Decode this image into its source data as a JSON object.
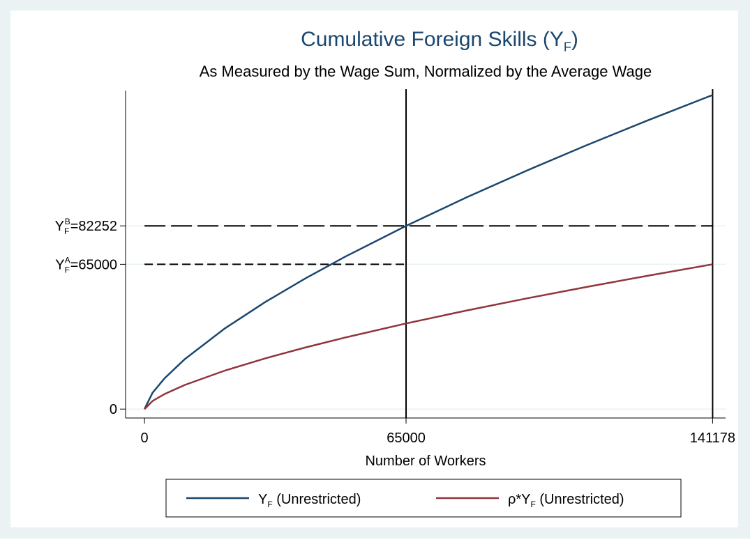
{
  "chart_data": {
    "type": "line",
    "title": [
      "Cumulative Foreign Skills (Y",
      "F",
      ")"
    ],
    "subtitle": "As Measured by the Wage Sum, Normalized by the Average Wage",
    "xlabel": "Number of Workers",
    "x": [
      0,
      2000,
      5000,
      10000,
      20000,
      30000,
      40000,
      50000,
      65000,
      80000,
      95000,
      110000,
      125000,
      141178
    ],
    "series": [
      {
        "name": [
          "Y",
          "F",
          " (Unrestricted)"
        ],
        "color": "#1a476f",
        "values": [
          0,
          7322,
          13833,
          22398,
          36257,
          48060,
          58695,
          68540,
          82252,
          95018,
          107076,
          118558,
          129580,
          141012
        ]
      },
      {
        "name": [
          "ρ*Y",
          "F",
          " (Unrestricted)"
        ],
        "color": "#90353b",
        "values": [
          0,
          3640,
          6773,
          10825,
          17306,
          22776,
          27673,
          32186,
          38440,
          44241,
          49699,
          54888,
          59847,
          65000
        ]
      }
    ],
    "xlim": [
      -4700,
      144400
    ],
    "xticks": [
      0,
      65000,
      141178
    ],
    "ylim": [
      -4000,
      143000
    ],
    "yticks": [
      0,
      {
        "value": 65000,
        "label": [
          "Y",
          "F",
          "A",
          "=65000"
        ]
      },
      {
        "value": 82252,
        "label": [
          "Y",
          "F",
          "B",
          "=82252"
        ]
      }
    ],
    "grid": true,
    "legend": "bottom"
  }
}
